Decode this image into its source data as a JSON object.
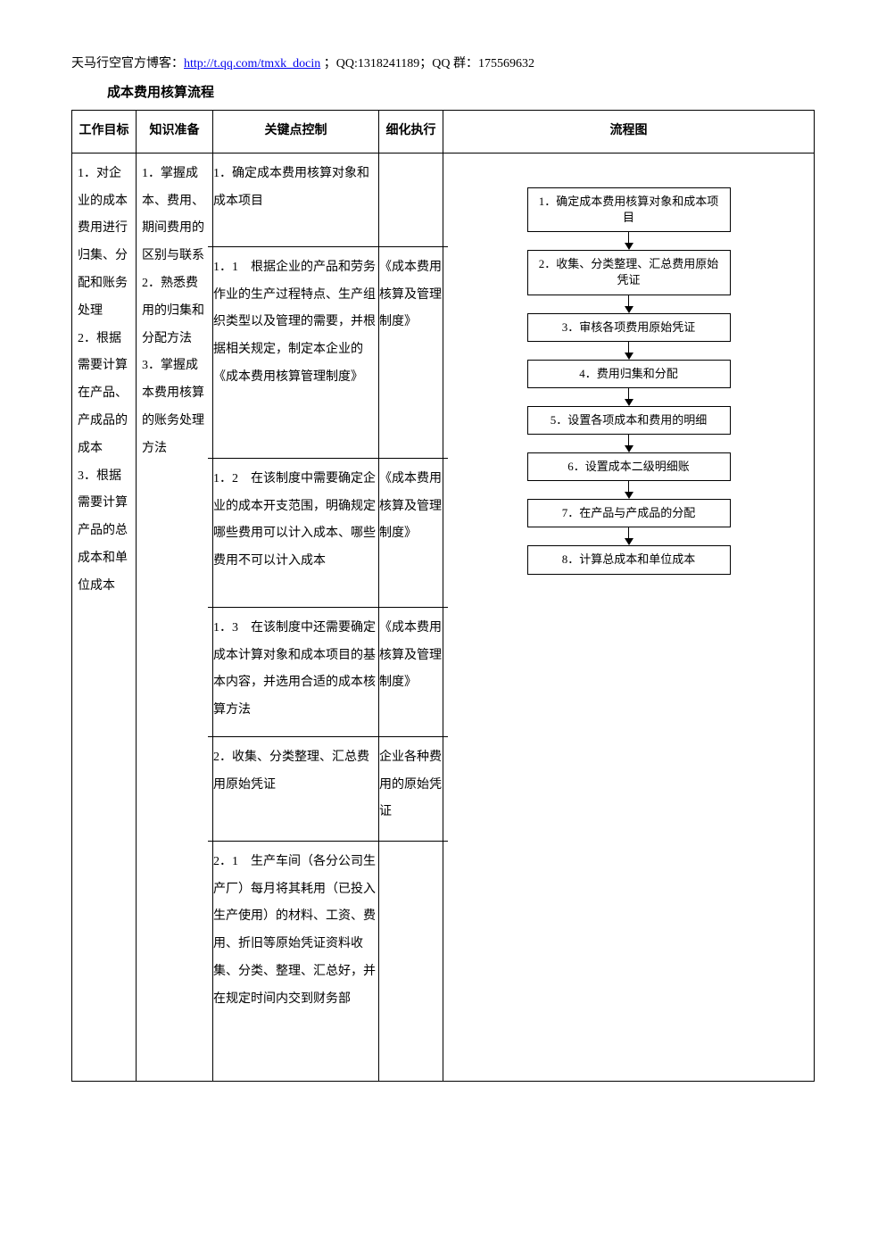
{
  "header": {
    "prefix": "天马行空官方博客：",
    "link_text": "http://t.qq.com/tmxk_docin",
    "link_href": "http://t.qq.com/tmxk_docin",
    "suffix": " ；QQ:1318241189；QQ 群：175569632"
  },
  "title": "成本费用核算流程",
  "columns": {
    "goal": "工作目标",
    "prep": "知识准备",
    "key": "关键点控制",
    "exec": "细化执行",
    "flow": "流程图"
  },
  "goal_text": "1．对企业的成本费用进行归集、分配和账务处理\n2．根据需要计算在产品、产成品的成本\n3．根据需要计算产品的总成本和单位成本",
  "prep_text": "1．掌握成本、费用、期间费用的区别与联系\n2．熟悉费用的归集和分配方法\n3．掌握成本费用核算的账务处理方法",
  "kp": {
    "s1": "1．确定成本费用核算对象和成本项目",
    "s11": "1．1　根据企业的产品和劳务作业的生产过程特点、生产组织类型以及管理的需要，并根据相关规定，制定本企业的《成本费用核算管理制度》",
    "s12": "1．2　在该制度中需要确定企业的成本开支范围，明确规定哪些费用可以计入成本、哪些费用不可以计入成本",
    "s13": "1．3　在该制度中还需要确定成本计算对象和成本项目的基本内容，并选用合适的成本核算方法",
    "s2": "2．收集、分类整理、汇总费用原始凭证",
    "s21": "2．1　生产车间（各分公司生产厂）每月将其耗用（已投入生产使用）的材料、工资、费用、折旧等原始凭证资料收集、分类、整理、汇总好，并在规定时间内交到财务部"
  },
  "exec": {
    "e11": "《成本费用核算及管理制度》",
    "e12": "《成本费用核算及管理制度》",
    "e13": "《成本费用核算及管理制度》",
    "e2": "企业各种费用的原始凭证"
  },
  "flow": {
    "b1": "1．确定成本费用核算对象和成本项目",
    "b2": "2．收集、分类整理、汇总费用原始凭证",
    "b3": "3．审核各项费用原始凭证",
    "b4": "4．费用归集和分配",
    "b5": "5．设置各项成本和费用的明细",
    "b6": "6．设置成本二级明细账",
    "b7": "7．在产品与产成品的分配",
    "b8": "8．计算总成本和单位成本"
  }
}
